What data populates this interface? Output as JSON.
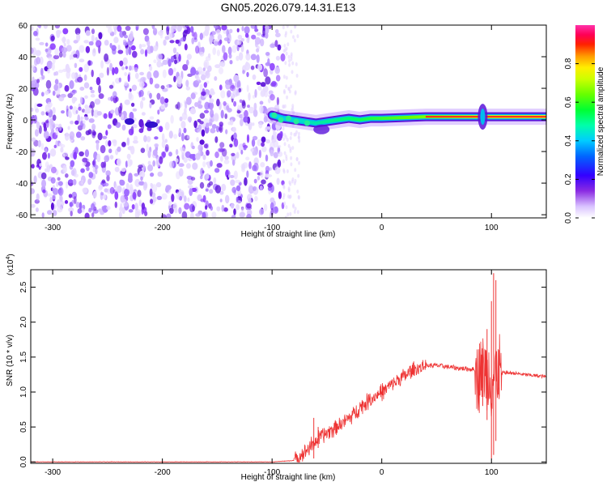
{
  "title": "GN05.2026.079.14.31.E13",
  "chart_data": [
    {
      "type": "heatmap",
      "xlabel": "Height of straight line (km)",
      "ylabel": "Frequency (Hz)",
      "xlim": [
        -320,
        150
      ],
      "ylim": [
        -62,
        60
      ],
      "x_ticks": [
        -300,
        -200,
        -100,
        0,
        100
      ],
      "y_ticks": [
        -60,
        -40,
        -20,
        0,
        20,
        40,
        60
      ],
      "noise_region_x": [
        -320,
        -90
      ],
      "signal_band": [
        {
          "x": -100,
          "f": 3
        },
        {
          "x": -90,
          "f": 1
        },
        {
          "x": -80,
          "f": 0
        },
        {
          "x": -70,
          "f": -1
        },
        {
          "x": -60,
          "f": -2
        },
        {
          "x": -50,
          "f": -1
        },
        {
          "x": -40,
          "f": 0
        },
        {
          "x": -30,
          "f": 1
        },
        {
          "x": -20,
          "f": 0
        },
        {
          "x": -10,
          "f": 1
        },
        {
          "x": 0,
          "f": 1
        },
        {
          "x": 20,
          "f": 1.5
        },
        {
          "x": 40,
          "f": 2
        },
        {
          "x": 60,
          "f": 2
        },
        {
          "x": 80,
          "f": 2
        },
        {
          "x": 90,
          "f": 2
        },
        {
          "x": 100,
          "f": 2
        },
        {
          "x": 120,
          "f": 2
        },
        {
          "x": 150,
          "f": 2
        }
      ],
      "colorbar": {
        "label": "Normalized spectral amplitude",
        "range": [
          0.0,
          1.0
        ],
        "ticks": [
          0.0,
          0.2,
          0.4,
          0.6,
          0.8
        ],
        "tick_labels": [
          "0.0",
          "0.2",
          "0.4",
          "0.6",
          "0.8"
        ]
      }
    },
    {
      "type": "line",
      "xlabel": "Height of straight line (km)",
      "ylabel": "SNR (10 * v/v)",
      "scale_note": "(x10",
      "scale_exp": "4",
      "xlim": [
        -320,
        150
      ],
      "ylim": [
        -0.02,
        2.75
      ],
      "x_ticks": [
        -300,
        -200,
        -100,
        0,
        100
      ],
      "y_ticks": [
        0.0,
        0.5,
        1.0,
        1.5,
        2.0,
        2.5
      ],
      "y_tick_labels": [
        "0.0",
        "0.5",
        "1.0",
        "1.5",
        "2.0",
        "2.5"
      ],
      "color": "#ee3333",
      "series": [
        {
          "points": [
            [
              -320,
              0.0
            ],
            [
              -100,
              0.0
            ],
            [
              -80,
              0.02
            ],
            [
              -70,
              0.15
            ],
            [
              -60,
              0.3
            ],
            [
              -50,
              0.42
            ],
            [
              -40,
              0.52
            ],
            [
              -30,
              0.62
            ],
            [
              -20,
              0.78
            ],
            [
              -10,
              0.9
            ],
            [
              0,
              1.0
            ],
            [
              10,
              1.12
            ],
            [
              20,
              1.22
            ],
            [
              30,
              1.32
            ],
            [
              40,
              1.38
            ],
            [
              50,
              1.38
            ],
            [
              60,
              1.36
            ],
            [
              70,
              1.34
            ],
            [
              80,
              1.33
            ],
            [
              90,
              1.32
            ],
            [
              100,
              1.2
            ],
            [
              110,
              1.28
            ],
            [
              120,
              1.27
            ],
            [
              130,
              1.25
            ],
            [
              150,
              1.22
            ]
          ],
          "spikes": [
            {
              "x": -62,
              "low": 0.05,
              "high": 0.63
            },
            {
              "x": -58,
              "low": 0.2,
              "high": 0.5
            },
            {
              "x": 92,
              "low": 0.8,
              "high": 1.6
            },
            {
              "x": 96,
              "low": 0.6,
              "high": 1.9
            },
            {
              "x": 100,
              "low": 0.05,
              "high": 2.3
            },
            {
              "x": 102,
              "low": 0.1,
              "high": 2.7
            },
            {
              "x": 104,
              "low": 0.3,
              "high": 2.6
            },
            {
              "x": 107,
              "low": 0.9,
              "high": 1.6
            }
          ]
        }
      ]
    }
  ]
}
